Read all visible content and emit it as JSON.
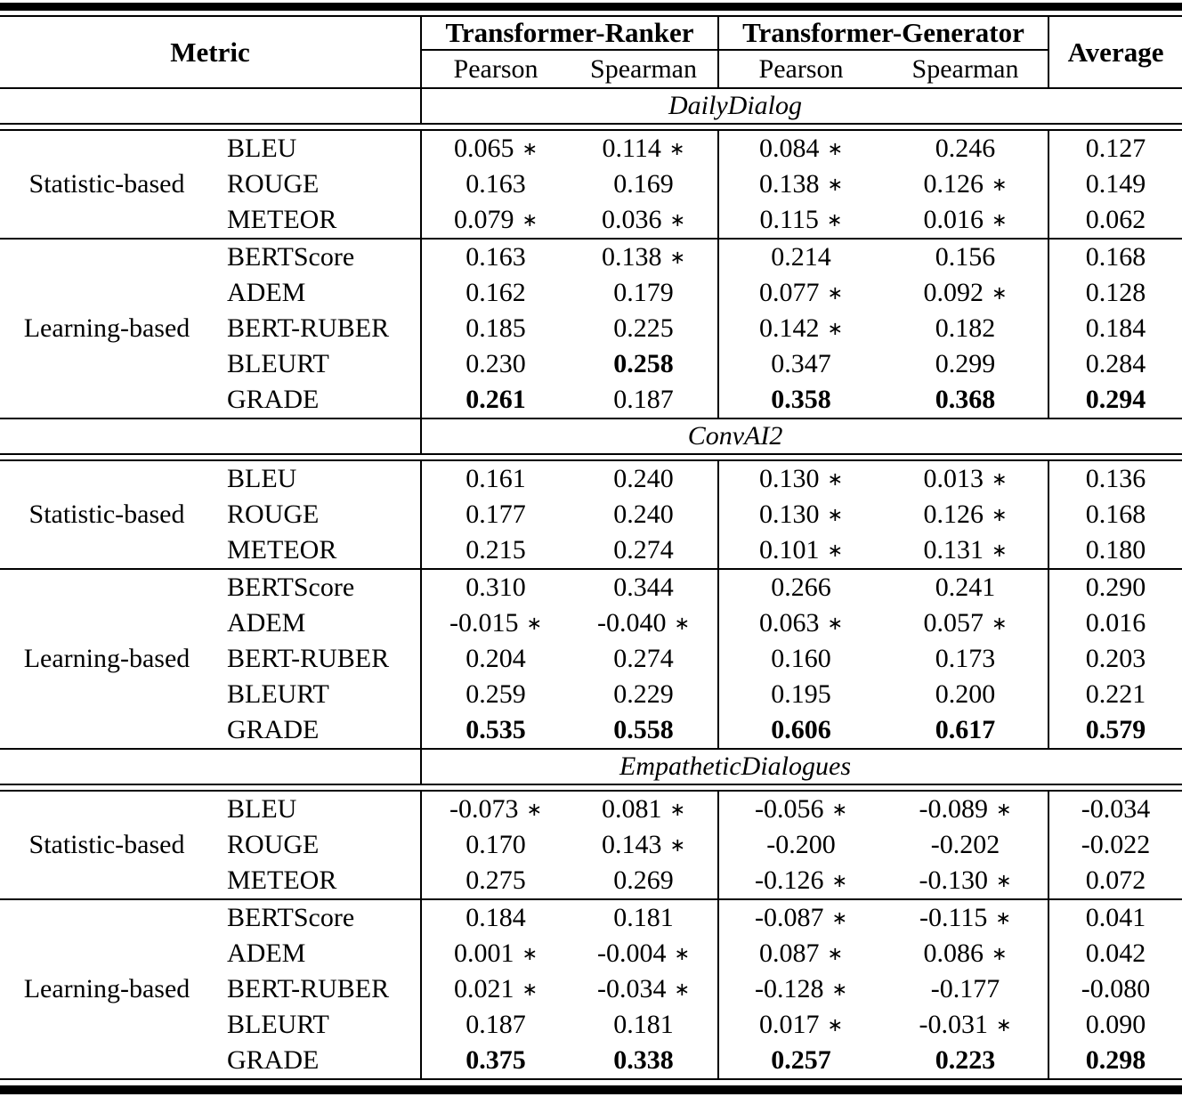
{
  "asterisk_symbol": "∗",
  "table": {
    "header": {
      "metric": "Metric",
      "groups": [
        "Transformer-Ranker",
        "Transformer-Generator"
      ],
      "subcols": [
        "Pearson",
        "Spearman",
        "Pearson",
        "Spearman"
      ],
      "average": "Average"
    },
    "sections": [
      {
        "dataset": "DailyDialog",
        "groups": [
          {
            "category": "Statistic-based",
            "rows": [
              {
                "metric": "BLEU",
                "cells": [
                  {
                    "v": "0.065",
                    "ast": true
                  },
                  {
                    "v": "0.114",
                    "ast": true
                  },
                  {
                    "v": "0.084",
                    "ast": true
                  },
                  {
                    "v": "0.246"
                  },
                  {
                    "v": "0.127"
                  }
                ]
              },
              {
                "metric": "ROUGE",
                "cells": [
                  {
                    "v": "0.163"
                  },
                  {
                    "v": "0.169"
                  },
                  {
                    "v": "0.138",
                    "ast": true
                  },
                  {
                    "v": "0.126",
                    "ast": true
                  },
                  {
                    "v": "0.149"
                  }
                ]
              },
              {
                "metric": "METEOR",
                "cells": [
                  {
                    "v": "0.079",
                    "ast": true
                  },
                  {
                    "v": "0.036",
                    "ast": true
                  },
                  {
                    "v": "0.115",
                    "ast": true
                  },
                  {
                    "v": "0.016",
                    "ast": true
                  },
                  {
                    "v": "0.062"
                  }
                ]
              }
            ]
          },
          {
            "category": "Learning-based",
            "rows": [
              {
                "metric": "BERTScore",
                "cells": [
                  {
                    "v": "0.163"
                  },
                  {
                    "v": "0.138",
                    "ast": true
                  },
                  {
                    "v": "0.214"
                  },
                  {
                    "v": "0.156"
                  },
                  {
                    "v": "0.168"
                  }
                ]
              },
              {
                "metric": "ADEM",
                "cells": [
                  {
                    "v": "0.162"
                  },
                  {
                    "v": "0.179"
                  },
                  {
                    "v": "0.077",
                    "ast": true
                  },
                  {
                    "v": "0.092",
                    "ast": true
                  },
                  {
                    "v": "0.128"
                  }
                ]
              },
              {
                "metric": "BERT-RUBER",
                "cells": [
                  {
                    "v": "0.185"
                  },
                  {
                    "v": "0.225"
                  },
                  {
                    "v": "0.142",
                    "ast": true
                  },
                  {
                    "v": "0.182"
                  },
                  {
                    "v": "0.184"
                  }
                ]
              },
              {
                "metric": "BLEURT",
                "cells": [
                  {
                    "v": "0.230"
                  },
                  {
                    "v": "0.258",
                    "b": true
                  },
                  {
                    "v": "0.347"
                  },
                  {
                    "v": "0.299"
                  },
                  {
                    "v": "0.284"
                  }
                ]
              },
              {
                "metric": "GRADE",
                "cells": [
                  {
                    "v": "0.261",
                    "b": true
                  },
                  {
                    "v": "0.187"
                  },
                  {
                    "v": "0.358",
                    "b": true
                  },
                  {
                    "v": "0.368",
                    "b": true
                  },
                  {
                    "v": "0.294",
                    "b": true
                  }
                ]
              }
            ]
          }
        ]
      },
      {
        "dataset": "ConvAI2",
        "groups": [
          {
            "category": "Statistic-based",
            "rows": [
              {
                "metric": "BLEU",
                "cells": [
                  {
                    "v": "0.161"
                  },
                  {
                    "v": "0.240"
                  },
                  {
                    "v": "0.130",
                    "ast": true
                  },
                  {
                    "v": "0.013",
                    "ast": true
                  },
                  {
                    "v": "0.136"
                  }
                ]
              },
              {
                "metric": "ROUGE",
                "cells": [
                  {
                    "v": "0.177"
                  },
                  {
                    "v": "0.240"
                  },
                  {
                    "v": "0.130",
                    "ast": true
                  },
                  {
                    "v": "0.126",
                    "ast": true
                  },
                  {
                    "v": "0.168"
                  }
                ]
              },
              {
                "metric": "METEOR",
                "cells": [
                  {
                    "v": "0.215"
                  },
                  {
                    "v": "0.274"
                  },
                  {
                    "v": "0.101",
                    "ast": true
                  },
                  {
                    "v": "0.131",
                    "ast": true
                  },
                  {
                    "v": "0.180"
                  }
                ]
              }
            ]
          },
          {
            "category": "Learning-based",
            "rows": [
              {
                "metric": "BERTScore",
                "cells": [
                  {
                    "v": "0.310"
                  },
                  {
                    "v": "0.344"
                  },
                  {
                    "v": "0.266"
                  },
                  {
                    "v": "0.241"
                  },
                  {
                    "v": "0.290"
                  }
                ]
              },
              {
                "metric": "ADEM",
                "cells": [
                  {
                    "v": "-0.015",
                    "ast": true
                  },
                  {
                    "v": "-0.040",
                    "ast": true
                  },
                  {
                    "v": "0.063",
                    "ast": true
                  },
                  {
                    "v": "0.057",
                    "ast": true
                  },
                  {
                    "v": "0.016"
                  }
                ]
              },
              {
                "metric": "BERT-RUBER",
                "cells": [
                  {
                    "v": "0.204"
                  },
                  {
                    "v": "0.274"
                  },
                  {
                    "v": "0.160"
                  },
                  {
                    "v": "0.173"
                  },
                  {
                    "v": "0.203"
                  }
                ]
              },
              {
                "metric": "BLEURT",
                "cells": [
                  {
                    "v": "0.259"
                  },
                  {
                    "v": "0.229"
                  },
                  {
                    "v": "0.195"
                  },
                  {
                    "v": "0.200"
                  },
                  {
                    "v": "0.221"
                  }
                ]
              },
              {
                "metric": "GRADE",
                "cells": [
                  {
                    "v": "0.535",
                    "b": true
                  },
                  {
                    "v": "0.558",
                    "b": true
                  },
                  {
                    "v": "0.606",
                    "b": true
                  },
                  {
                    "v": "0.617",
                    "b": true
                  },
                  {
                    "v": "0.579",
                    "b": true
                  }
                ]
              }
            ]
          }
        ]
      },
      {
        "dataset": "EmpatheticDialogues",
        "groups": [
          {
            "category": "Statistic-based",
            "rows": [
              {
                "metric": "BLEU",
                "cells": [
                  {
                    "v": "-0.073",
                    "ast": true
                  },
                  {
                    "v": "0.081",
                    "ast": true
                  },
                  {
                    "v": "-0.056",
                    "ast": true
                  },
                  {
                    "v": "-0.089",
                    "ast": true
                  },
                  {
                    "v": "-0.034"
                  }
                ]
              },
              {
                "metric": "ROUGE",
                "cells": [
                  {
                    "v": "0.170"
                  },
                  {
                    "v": "0.143",
                    "ast": true
                  },
                  {
                    "v": "-0.200"
                  },
                  {
                    "v": "-0.202"
                  },
                  {
                    "v": "-0.022"
                  }
                ]
              },
              {
                "metric": "METEOR",
                "cells": [
                  {
                    "v": "0.275"
                  },
                  {
                    "v": "0.269"
                  },
                  {
                    "v": "-0.126",
                    "ast": true
                  },
                  {
                    "v": "-0.130",
                    "ast": true
                  },
                  {
                    "v": "0.072"
                  }
                ]
              }
            ]
          },
          {
            "category": "Learning-based",
            "rows": [
              {
                "metric": "BERTScore",
                "cells": [
                  {
                    "v": "0.184"
                  },
                  {
                    "v": "0.181"
                  },
                  {
                    "v": "-0.087",
                    "ast": true
                  },
                  {
                    "v": "-0.115",
                    "ast": true
                  },
                  {
                    "v": "0.041"
                  }
                ]
              },
              {
                "metric": "ADEM",
                "cells": [
                  {
                    "v": "0.001",
                    "ast": true
                  },
                  {
                    "v": "-0.004",
                    "ast": true
                  },
                  {
                    "v": "0.087",
                    "ast": true
                  },
                  {
                    "v": "0.086",
                    "ast": true
                  },
                  {
                    "v": "0.042"
                  }
                ]
              },
              {
                "metric": "BERT-RUBER",
                "cells": [
                  {
                    "v": "0.021",
                    "ast": true
                  },
                  {
                    "v": "-0.034",
                    "ast": true
                  },
                  {
                    "v": "-0.128",
                    "ast": true
                  },
                  {
                    "v": "-0.177"
                  },
                  {
                    "v": "-0.080"
                  }
                ]
              },
              {
                "metric": "BLEURT",
                "cells": [
                  {
                    "v": "0.187"
                  },
                  {
                    "v": "0.181"
                  },
                  {
                    "v": "0.017",
                    "ast": true
                  },
                  {
                    "v": "-0.031",
                    "ast": true
                  },
                  {
                    "v": "0.090"
                  }
                ]
              },
              {
                "metric": "GRADE",
                "cells": [
                  {
                    "v": "0.375",
                    "b": true
                  },
                  {
                    "v": "0.338",
                    "b": true
                  },
                  {
                    "v": "0.257",
                    "b": true
                  },
                  {
                    "v": "0.223",
                    "b": true
                  },
                  {
                    "v": "0.298",
                    "b": true
                  }
                ]
              }
            ]
          }
        ]
      }
    ]
  }
}
